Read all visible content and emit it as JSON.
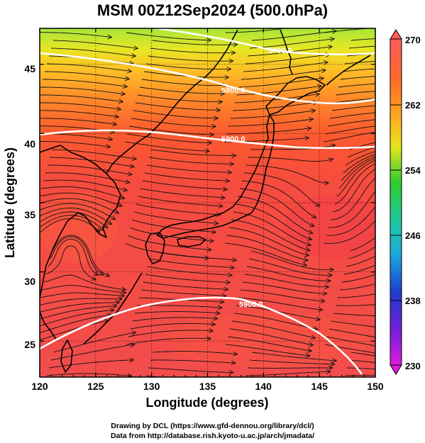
{
  "title": "MSM 00Z12Sep2024 (500.0hPa)",
  "map": {
    "xlabel": "Longitude (degrees)",
    "ylabel": "Latitude  (degrees)",
    "x_ticks": [
      "120",
      "125",
      "130",
      "135",
      "140",
      "145",
      "150"
    ],
    "y_ticks": [
      "25",
      "30",
      "35",
      "40",
      "45"
    ],
    "lon_range": [
      120,
      150
    ],
    "lat_range": [
      22.4,
      47.6
    ],
    "gridlines": true,
    "field": "temperature shading with streamlines and height contours",
    "contours": [
      {
        "label": "5700.0"
      },
      {
        "label": "5800.0"
      },
      {
        "label": "5900.0"
      },
      {
        "label": "5900.0"
      }
    ]
  },
  "colorbar": {
    "ticks": [
      "270",
      "262",
      "254",
      "246",
      "238",
      "230"
    ],
    "min": 230,
    "max": 270,
    "colors": {
      "top": "#ff5a5a",
      "orange": "#ff8a28",
      "yellow": "#e6e61e",
      "green": "#2ecc2e",
      "cyan": "#1ec8c8",
      "blue": "#1e3ccd",
      "magenta": "#dc1edc"
    }
  },
  "credits": {
    "line1": "Drawing by DCL (https://www.gfd-dennou.org/library/dcl/)",
    "line2": "Data from http://database.rish.kyoto-u.ac.jp/arch/jmadata/"
  }
}
